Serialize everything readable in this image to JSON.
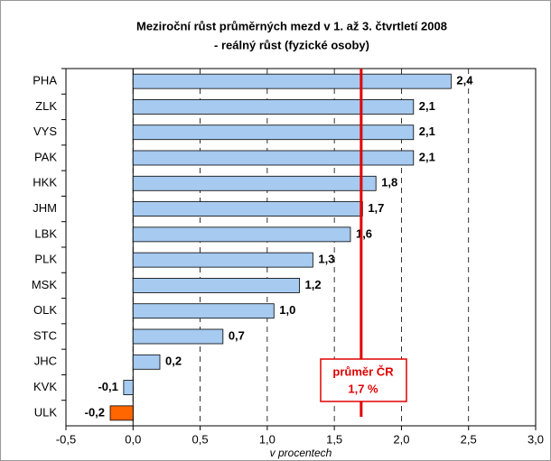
{
  "chart_data": {
    "type": "hbar",
    "title": [
      "Meziroční růst průměrných mezd v 1. až 3. čtvrtletí 2008",
      "- reálný růst (fyzické osoby)"
    ],
    "xlabel": "v procentech",
    "categories": [
      "PHA",
      "ZLK",
      "VYS",
      "PAK",
      "HKK",
      "JHM",
      "LBK",
      "PLK",
      "MSK",
      "OLK",
      "STC",
      "JHC",
      "KVK",
      "ULK"
    ],
    "values": [
      2.37,
      2.09,
      2.09,
      2.09,
      1.81,
      1.71,
      1.62,
      1.34,
      1.24,
      1.05,
      0.67,
      0.2,
      -0.07,
      -0.17
    ],
    "value_labels": [
      "2,4",
      "2,1",
      "2,1",
      "2,1",
      "1,8",
      "1,7",
      "1,6",
      "1,3",
      "1,2",
      "1,0",
      "0,7",
      "0,2",
      "-0,1",
      "-0,2"
    ],
    "colors": [
      "#a6caf0",
      "#a6caf0",
      "#a6caf0",
      "#a6caf0",
      "#a6caf0",
      "#a6caf0",
      "#a6caf0",
      "#a6caf0",
      "#a6caf0",
      "#a6caf0",
      "#a6caf0",
      "#a6caf0",
      "#a6caf0",
      "#ff6600"
    ],
    "xlim": [
      -0.5,
      3.0
    ],
    "xticks": [
      {
        "value": -0.5,
        "label": "-0,5"
      },
      {
        "value": 0,
        "label": "0,0"
      },
      {
        "value": 0.5,
        "label": "0,5"
      },
      {
        "value": 1.0,
        "label": "1,0"
      },
      {
        "value": 1.5,
        "label": "1,5"
      },
      {
        "value": 2.0,
        "label": "2,0"
      },
      {
        "value": 2.5,
        "label": "2,5"
      },
      {
        "value": 3.0,
        "label": "3,0"
      }
    ],
    "grid": true,
    "reference": {
      "value": 1.7,
      "label": "průměr ČR",
      "value_label": "1,7 %",
      "color": "#e00000"
    }
  }
}
